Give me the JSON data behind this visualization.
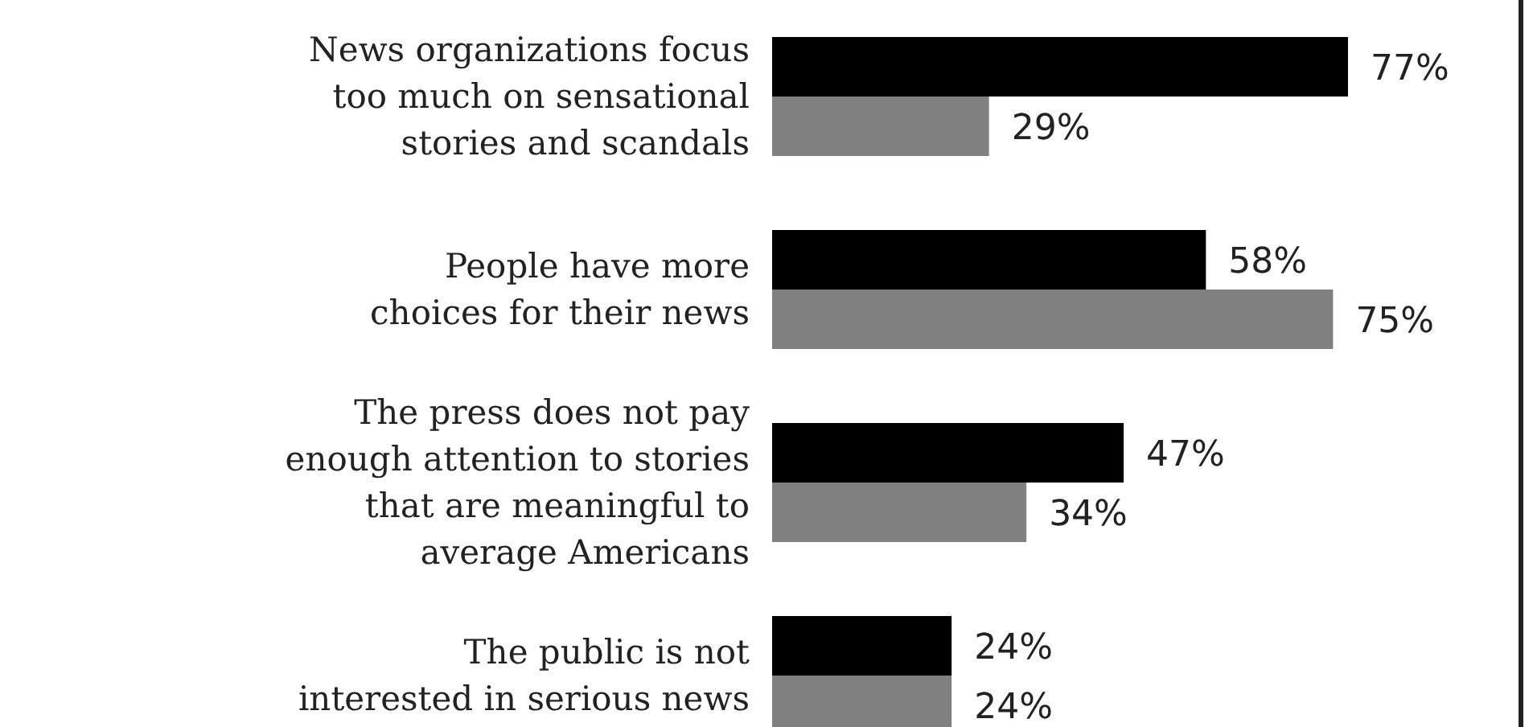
{
  "chart_data": {
    "type": "bar",
    "orientation": "horizontal",
    "categories": [
      "News organizations focus\ntoo much on sensational\nstories and scandals",
      "People have more\nchoices for their news",
      "The press does not pay\nenough attention to stories\nthat are meaningful to\naverage Americans",
      "The public is not\ninterested in serious news"
    ],
    "series": [
      {
        "color": "#000000",
        "values": [
          77,
          58,
          47,
          24
        ],
        "value_labels": [
          "77%",
          "58%",
          "47%",
          "24%"
        ]
      },
      {
        "color": "#808080",
        "values": [
          29,
          75,
          34,
          24
        ],
        "value_labels": [
          "29%",
          "75%",
          "34%",
          "24%"
        ]
      }
    ]
  }
}
